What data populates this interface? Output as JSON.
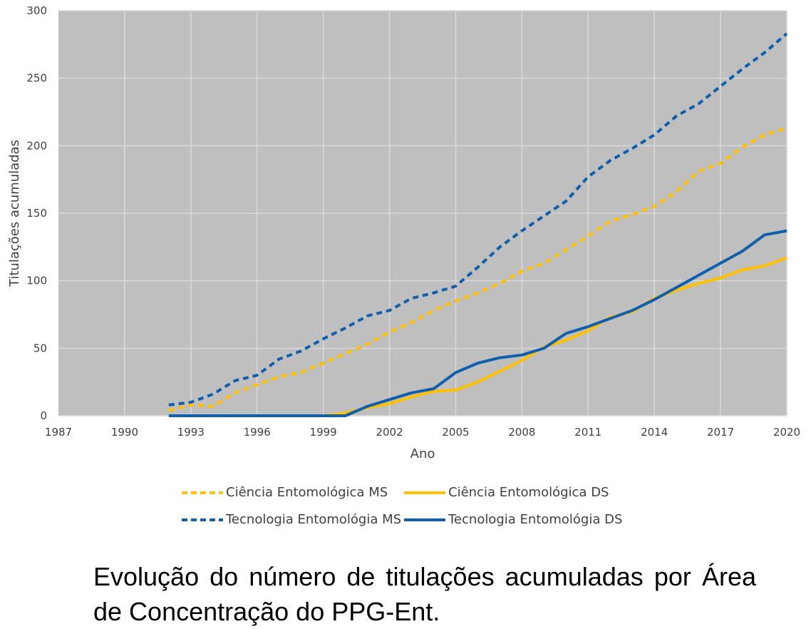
{
  "chart_data": {
    "type": "line",
    "xlabel": "Ano",
    "ylabel": "Titulações acumuladas",
    "xlim": [
      1987,
      2020
    ],
    "ylim": [
      0,
      300
    ],
    "xticks": [
      "1987",
      "1990",
      "1993",
      "1996",
      "1999",
      "2002",
      "2005",
      "2008",
      "2011",
      "2014",
      "2017",
      "2020"
    ],
    "yticks": [
      "0",
      "50",
      "100",
      "150",
      "200",
      "250",
      "300"
    ],
    "grid": true,
    "plot_background": "#bfbfbf",
    "legend_position": "bottom",
    "x": [
      1992,
      1993,
      1994,
      1995,
      1996,
      1997,
      1998,
      1999,
      2000,
      2001,
      2002,
      2003,
      2004,
      2005,
      2006,
      2007,
      2008,
      2009,
      2010,
      2011,
      2012,
      2013,
      2014,
      2015,
      2016,
      2017,
      2018,
      2019,
      2020
    ],
    "series": [
      {
        "name": "Ciência Entomológica MS",
        "color": "#ffc000",
        "style": "dashed",
        "values": [
          4,
          8,
          7,
          17,
          23,
          29,
          32,
          39,
          46,
          53,
          62,
          69,
          78,
          85,
          91,
          98,
          107,
          113,
          123,
          133,
          144,
          149,
          155,
          166,
          181,
          187,
          199,
          208,
          213
        ]
      },
      {
        "name": "Ciência Entomológica DS",
        "color": "#ffc000",
        "style": "solid",
        "values": [
          0,
          0,
          0,
          0,
          0,
          0,
          0,
          0,
          2,
          6,
          9,
          14,
          18,
          19,
          25,
          33,
          41,
          51,
          56,
          63,
          73,
          77,
          87,
          93,
          98,
          102,
          108,
          111,
          117
        ]
      },
      {
        "name": "Tecnologia Entomológia MS",
        "color": "#0f5fad",
        "style": "dashed",
        "values": [
          8,
          10,
          16,
          26,
          30,
          42,
          48,
          57,
          65,
          74,
          78,
          87,
          91,
          96,
          110,
          125,
          137,
          148,
          159,
          177,
          189,
          198,
          208,
          222,
          231,
          244,
          257,
          269,
          283
        ]
      },
      {
        "name": "Tecnologia Entomológia DS",
        "color": "#0f5fad",
        "style": "solid",
        "values": [
          0,
          0,
          0,
          0,
          0,
          0,
          0,
          0,
          0,
          7,
          12,
          17,
          20,
          32,
          39,
          43,
          45,
          50,
          61,
          66,
          72,
          78,
          86,
          95,
          104,
          113,
          122,
          134,
          137
        ]
      }
    ]
  },
  "caption": "Evolução do número de titulações acumuladas por Área de Concentração do PPG-Ent."
}
